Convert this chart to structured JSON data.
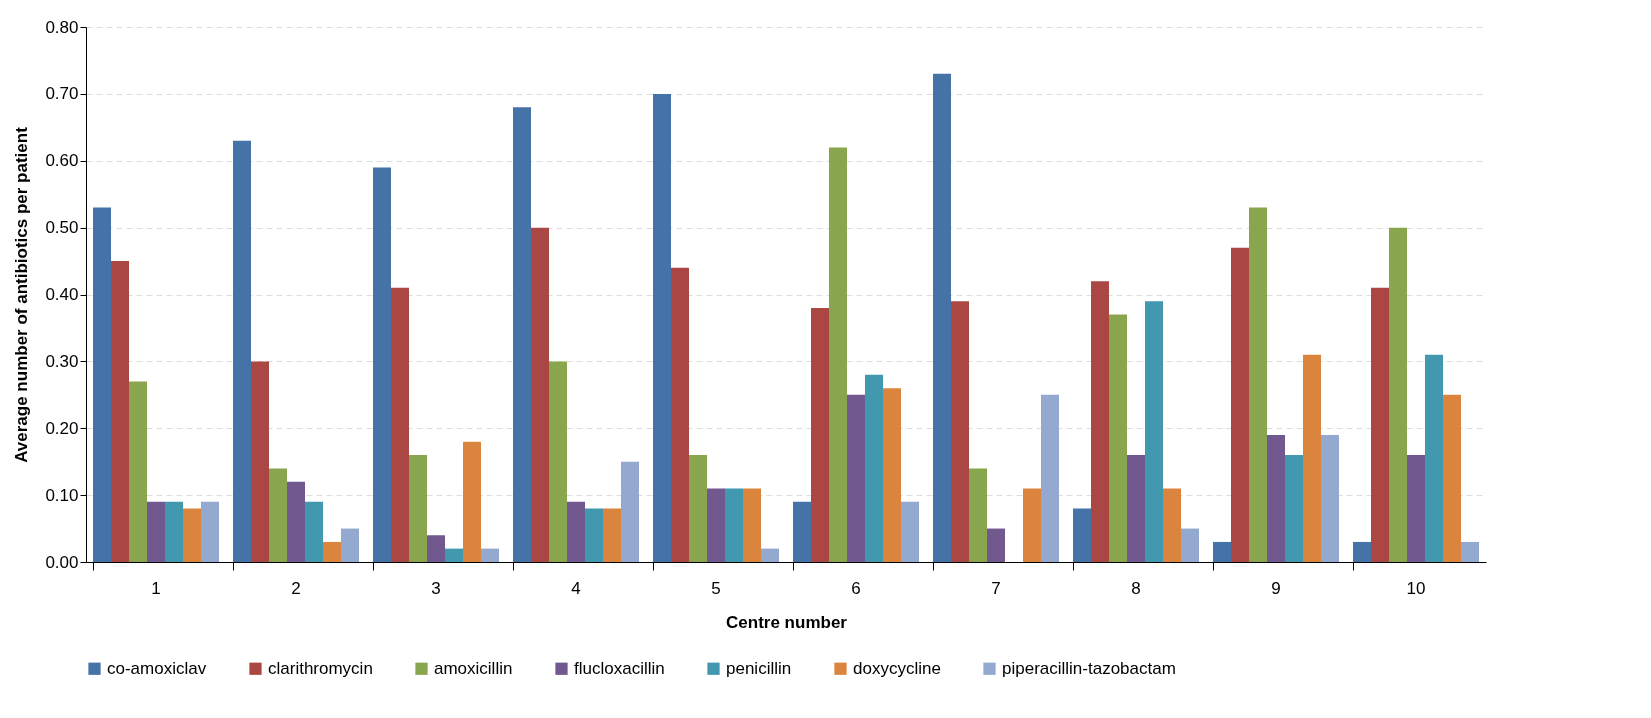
{
  "chart_data": {
    "type": "bar",
    "xlabel": "Centre number",
    "ylabel": "Average number of antibiotics per patient",
    "categories": [
      "1",
      "2",
      "3",
      "4",
      "5",
      "6",
      "7",
      "8",
      "9",
      "10"
    ],
    "series": [
      {
        "name": "co-amoxiclav",
        "color": "#4572a7",
        "values": [
          0.53,
          0.63,
          0.59,
          0.68,
          0.7,
          0.09,
          0.73,
          0.08,
          0.03,
          0.03
        ]
      },
      {
        "name": "clarithromycin",
        "color": "#aa4643",
        "values": [
          0.45,
          0.3,
          0.41,
          0.5,
          0.44,
          0.38,
          0.39,
          0.42,
          0.47,
          0.41
        ]
      },
      {
        "name": "amoxicillin",
        "color": "#89a54e",
        "values": [
          0.27,
          0.14,
          0.16,
          0.3,
          0.16,
          0.62,
          0.14,
          0.37,
          0.53,
          0.5
        ]
      },
      {
        "name": "flucloxacillin",
        "color": "#71588f",
        "values": [
          0.09,
          0.12,
          0.04,
          0.09,
          0.11,
          0.25,
          0.05,
          0.16,
          0.19,
          0.16
        ]
      },
      {
        "name": "penicillin",
        "color": "#4198af",
        "values": [
          0.09,
          0.09,
          0.02,
          0.08,
          0.11,
          0.28,
          0.0,
          0.39,
          0.16,
          0.31
        ]
      },
      {
        "name": "doxycycline",
        "color": "#db843d",
        "values": [
          0.08,
          0.03,
          0.18,
          0.08,
          0.11,
          0.26,
          0.11,
          0.11,
          0.31,
          0.25
        ]
      },
      {
        "name": "piperacillin-tazobactam",
        "color": "#93a9cf",
        "values": [
          0.09,
          0.05,
          0.02,
          0.15,
          0.02,
          0.09,
          0.25,
          0.05,
          0.19,
          0.03
        ]
      }
    ],
    "ylim": [
      0,
      0.8
    ],
    "yticks": [
      {
        "value": 0,
        "label": "0.00"
      },
      {
        "value": 0.1,
        "label": "0.10"
      },
      {
        "value": 0.2,
        "label": "0.20"
      },
      {
        "value": 0.3,
        "label": "0.30"
      },
      {
        "value": 0.4,
        "label": "0.40"
      },
      {
        "value": 0.5,
        "label": "0.50"
      },
      {
        "value": 0.6,
        "label": "0.60"
      },
      {
        "value": 0.7,
        "label": "0.70"
      },
      {
        "value": 0.8,
        "label": "0.80"
      }
    ],
    "grid": "y",
    "legend": "bottom"
  }
}
